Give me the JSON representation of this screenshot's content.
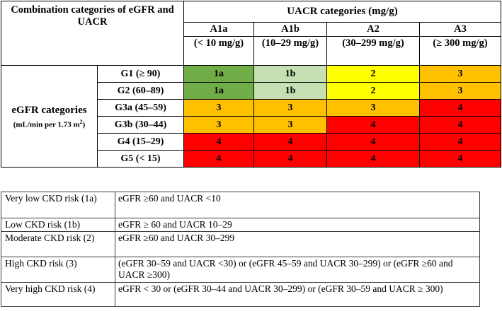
{
  "grid": {
    "header_combo": "Combination categories of eGFR and UACR",
    "header_uacr": "UACR categories (mg/g)",
    "columns": [
      {
        "code": "A1a",
        "range": "(< 10 mg/g)"
      },
      {
        "code": "A1b",
        "range": "(10–29 mg/g)"
      },
      {
        "code": "A2",
        "range": "(30–299 mg/g)"
      },
      {
        "code": "A3",
        "range": "(≥ 300 mg/g)"
      }
    ],
    "egfr_label": "eGFR categories",
    "egfr_unit": "(mL/min per 1.73 m",
    "egfr_unit_sup": "2",
    "egfr_unit_close": ")",
    "rows": [
      {
        "label": "G1 (≥ 90)",
        "cells": [
          "1a",
          "1b",
          "2",
          "3"
        ]
      },
      {
        "label": "G2 (60–89)",
        "cells": [
          "1a",
          "1b",
          "2",
          "3"
        ]
      },
      {
        "label": "G3a (45–59)",
        "cells": [
          "3",
          "3",
          "3",
          "4"
        ]
      },
      {
        "label": "G3b (30–44)",
        "cells": [
          "3",
          "3",
          "4",
          "4"
        ]
      },
      {
        "label": "G4 (15–29)",
        "cells": [
          "4",
          "4",
          "4",
          "4"
        ]
      },
      {
        "label": "G5 (< 15)",
        "cells": [
          "4",
          "4",
          "4",
          "4"
        ]
      }
    ],
    "colors": {
      "1a": "#70ad47",
      "1b": "#c6e0b4",
      "2": "#ffff00",
      "3": "#ffc000",
      "4": "#ff0000"
    }
  },
  "legend": [
    {
      "risk": "Very low CKD risk (1a)",
      "definition": "eGFR ≥60 and UACR <10"
    },
    {
      "risk": "Low CKD risk (1b)",
      "definition": "eGFR ≥ 60 and UACR 10–29"
    },
    {
      "risk": "Moderate CKD risk (2)",
      "definition": "eGFR ≥60 and UACR 30–299"
    },
    {
      "risk": "High CKD risk (3)",
      "definition": "(eGFR 30–59 and UACR <30) or (eGFR 45–59 and UACR 30–299) or (eGFR ≥60 and UACR ≥300)"
    },
    {
      "risk": "Very high CKD risk (4)",
      "definition": "eGFR < 30 or (eGFR 30–44 and UACR 30–299) or (eGFR 30–59 and UACR ≥ 300)"
    }
  ]
}
